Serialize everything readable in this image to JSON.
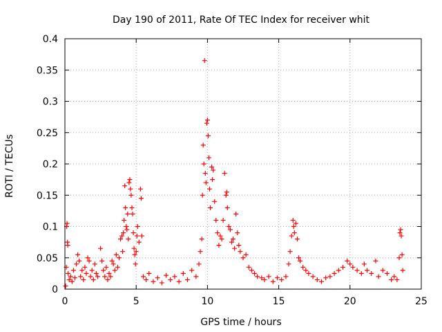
{
  "chart_data": {
    "type": "scatter",
    "title": "Day 190 of 2011, Rate Of TEC Index for receiver whit",
    "xlabel": "GPS time / hours",
    "ylabel": "ROTI / TECUs",
    "xlim": [
      0,
      25
    ],
    "ylim": [
      0,
      0.4
    ],
    "x_ticks": [
      0,
      5,
      10,
      15,
      20,
      25
    ],
    "y_ticks": [
      0,
      0.05,
      0.1,
      0.15,
      0.2,
      0.25,
      0.3,
      0.35,
      0.4
    ],
    "x_tick_labels": [
      "0",
      "5",
      "10",
      "15",
      "20",
      "25"
    ],
    "y_tick_labels": [
      "0",
      "0.05",
      "0.1",
      "0.15",
      "0.2",
      "0.25",
      "0.3",
      "0.35",
      "0.4"
    ],
    "grid": true,
    "marker": "plus",
    "series_color": "#ff0000",
    "points": [
      [
        0.05,
        0.005
      ],
      [
        0.1,
        0.035
      ],
      [
        0.12,
        0.1
      ],
      [
        0.15,
        0.105
      ],
      [
        0.18,
        0.075
      ],
      [
        0.2,
        0.07
      ],
      [
        0.22,
        0.025
      ],
      [
        0.3,
        0.015
      ],
      [
        0.4,
        0.02
      ],
      [
        0.5,
        0.012
      ],
      [
        0.6,
        0.03
      ],
      [
        0.7,
        0.018
      ],
      [
        0.8,
        0.04
      ],
      [
        0.9,
        0.055
      ],
      [
        1.0,
        0.045
      ],
      [
        1.1,
        0.02
      ],
      [
        1.2,
        0.03
      ],
      [
        1.3,
        0.015
      ],
      [
        1.4,
        0.035
      ],
      [
        1.5,
        0.025
      ],
      [
        1.6,
        0.05
      ],
      [
        1.7,
        0.045
      ],
      [
        1.8,
        0.02
      ],
      [
        1.9,
        0.03
      ],
      [
        2.0,
        0.015
      ],
      [
        2.1,
        0.04
      ],
      [
        2.2,
        0.025
      ],
      [
        2.3,
        0.02
      ],
      [
        2.5,
        0.065
      ],
      [
        2.6,
        0.045
      ],
      [
        2.7,
        0.03
      ],
      [
        2.8,
        0.02
      ],
      [
        2.9,
        0.035
      ],
      [
        3.0,
        0.015
      ],
      [
        3.1,
        0.025
      ],
      [
        3.2,
        0.02
      ],
      [
        3.3,
        0.045
      ],
      [
        3.4,
        0.04
      ],
      [
        3.5,
        0.03
      ],
      [
        3.6,
        0.055
      ],
      [
        3.7,
        0.035
      ],
      [
        3.8,
        0.05
      ],
      [
        3.9,
        0.08
      ],
      [
        4.0,
        0.085
      ],
      [
        4.05,
        0.06
      ],
      [
        4.1,
        0.09
      ],
      [
        4.15,
        0.11
      ],
      [
        4.2,
        0.165
      ],
      [
        4.25,
        0.13
      ],
      [
        4.3,
        0.1
      ],
      [
        4.35,
        0.095
      ],
      [
        4.4,
        0.12
      ],
      [
        4.45,
        0.08
      ],
      [
        4.5,
        0.17
      ],
      [
        4.55,
        0.175
      ],
      [
        4.6,
        0.16
      ],
      [
        4.65,
        0.15
      ],
      [
        4.7,
        0.13
      ],
      [
        4.75,
        0.12
      ],
      [
        4.8,
        0.09
      ],
      [
        4.85,
        0.065
      ],
      [
        4.9,
        0.055
      ],
      [
        4.95,
        0.04
      ],
      [
        5.0,
        0.06
      ],
      [
        5.05,
        0.085
      ],
      [
        5.1,
        0.1
      ],
      [
        5.2,
        0.075
      ],
      [
        5.3,
        0.16
      ],
      [
        5.35,
        0.145
      ],
      [
        5.4,
        0.085
      ],
      [
        5.5,
        0.02
      ],
      [
        5.7,
        0.015
      ],
      [
        5.9,
        0.025
      ],
      [
        6.2,
        0.012
      ],
      [
        6.5,
        0.018
      ],
      [
        6.8,
        0.01
      ],
      [
        7.1,
        0.022
      ],
      [
        7.4,
        0.015
      ],
      [
        7.7,
        0.02
      ],
      [
        8.0,
        0.012
      ],
      [
        8.3,
        0.025
      ],
      [
        8.6,
        0.015
      ],
      [
        8.9,
        0.03
      ],
      [
        9.2,
        0.02
      ],
      [
        9.4,
        0.04
      ],
      [
        9.5,
        0.06
      ],
      [
        9.6,
        0.08
      ],
      [
        9.65,
        0.15
      ],
      [
        9.7,
        0.23
      ],
      [
        9.75,
        0.2
      ],
      [
        9.8,
        0.365
      ],
      [
        9.85,
        0.185
      ],
      [
        9.9,
        0.17
      ],
      [
        9.95,
        0.265
      ],
      [
        10.0,
        0.27
      ],
      [
        10.05,
        0.245
      ],
      [
        10.1,
        0.21
      ],
      [
        10.15,
        0.16
      ],
      [
        10.2,
        0.13
      ],
      [
        10.3,
        0.195
      ],
      [
        10.35,
        0.175
      ],
      [
        10.4,
        0.19
      ],
      [
        10.5,
        0.14
      ],
      [
        10.6,
        0.11
      ],
      [
        10.7,
        0.09
      ],
      [
        10.8,
        0.07
      ],
      [
        10.9,
        0.085
      ],
      [
        11.0,
        0.08
      ],
      [
        11.1,
        0.11
      ],
      [
        11.2,
        0.185
      ],
      [
        11.3,
        0.15
      ],
      [
        11.35,
        0.155
      ],
      [
        11.4,
        0.13
      ],
      [
        11.5,
        0.1
      ],
      [
        11.6,
        0.095
      ],
      [
        11.7,
        0.075
      ],
      [
        11.8,
        0.08
      ],
      [
        11.9,
        0.065
      ],
      [
        12.0,
        0.12
      ],
      [
        12.1,
        0.09
      ],
      [
        12.2,
        0.07
      ],
      [
        12.3,
        0.06
      ],
      [
        12.5,
        0.05
      ],
      [
        12.7,
        0.055
      ],
      [
        12.9,
        0.035
      ],
      [
        13.1,
        0.03
      ],
      [
        13.3,
        0.025
      ],
      [
        13.5,
        0.02
      ],
      [
        13.8,
        0.018
      ],
      [
        14.0,
        0.015
      ],
      [
        14.3,
        0.02
      ],
      [
        14.6,
        0.012
      ],
      [
        14.9,
        0.018
      ],
      [
        15.2,
        0.015
      ],
      [
        15.5,
        0.02
      ],
      [
        15.7,
        0.04
      ],
      [
        15.8,
        0.06
      ],
      [
        15.9,
        0.085
      ],
      [
        16.0,
        0.11
      ],
      [
        16.05,
        0.1
      ],
      [
        16.1,
        0.09
      ],
      [
        16.2,
        0.105
      ],
      [
        16.3,
        0.08
      ],
      [
        16.4,
        0.05
      ],
      [
        16.5,
        0.045
      ],
      [
        16.7,
        0.035
      ],
      [
        16.9,
        0.03
      ],
      [
        17.1,
        0.025
      ],
      [
        17.4,
        0.02
      ],
      [
        17.7,
        0.015
      ],
      [
        18.0,
        0.012
      ],
      [
        18.3,
        0.018
      ],
      [
        18.6,
        0.02
      ],
      [
        18.9,
        0.025
      ],
      [
        19.2,
        0.03
      ],
      [
        19.5,
        0.035
      ],
      [
        19.8,
        0.045
      ],
      [
        20.0,
        0.04
      ],
      [
        20.2,
        0.035
      ],
      [
        20.5,
        0.03
      ],
      [
        20.8,
        0.025
      ],
      [
        21.0,
        0.04
      ],
      [
        21.2,
        0.03
      ],
      [
        21.5,
        0.025
      ],
      [
        21.8,
        0.045
      ],
      [
        22.0,
        0.02
      ],
      [
        22.3,
        0.03
      ],
      [
        22.6,
        0.025
      ],
      [
        22.9,
        0.015
      ],
      [
        23.1,
        0.02
      ],
      [
        23.3,
        0.015
      ],
      [
        23.45,
        0.05
      ],
      [
        23.5,
        0.09
      ],
      [
        23.55,
        0.095
      ],
      [
        23.6,
        0.085
      ],
      [
        23.65,
        0.055
      ],
      [
        23.7,
        0.03
      ]
    ]
  }
}
